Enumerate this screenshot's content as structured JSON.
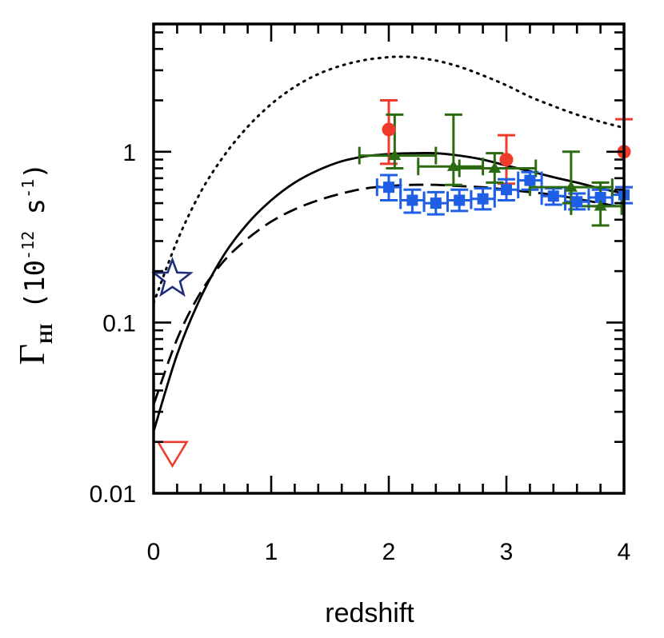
{
  "chart_data": {
    "type": "scatter",
    "title": "",
    "xlabel": "redshift",
    "ylabel": {
      "symbol": "Γ",
      "subscript": "HI",
      "unit_open": "(10",
      "unit_exp1": "-12",
      "unit_mid": " s",
      "unit_exp2": "-1",
      "unit_close": ")"
    },
    "xlim": [
      0,
      4
    ],
    "ylim": [
      0.01,
      5.6
    ],
    "yscale": "log",
    "xticks": [
      {
        "value": 0,
        "label": "0"
      },
      {
        "value": 1,
        "label": "1"
      },
      {
        "value": 2,
        "label": "2"
      },
      {
        "value": 3,
        "label": "3"
      },
      {
        "value": 4,
        "label": "4"
      }
    ],
    "yticks": [
      {
        "value": 0.01,
        "label": "0.01"
      },
      {
        "value": 0.1,
        "label": "0.1"
      },
      {
        "value": 1,
        "label": "1"
      }
    ],
    "curves": [
      {
        "name": "model-solid",
        "style": "solid",
        "x": [
          0,
          0.2,
          0.4,
          0.6,
          0.8,
          1.0,
          1.2,
          1.4,
          1.6,
          1.8,
          2.0,
          2.2,
          2.4,
          2.6,
          2.8,
          3.0,
          3.2,
          3.4,
          3.6,
          3.8,
          4.0
        ],
        "y": [
          0.023,
          0.065,
          0.14,
          0.25,
          0.38,
          0.52,
          0.66,
          0.78,
          0.88,
          0.94,
          0.97,
          0.98,
          0.98,
          0.95,
          0.9,
          0.83,
          0.77,
          0.71,
          0.66,
          0.61,
          0.57
        ]
      },
      {
        "name": "model-dashed",
        "style": "dashed",
        "x": [
          0,
          0.2,
          0.4,
          0.6,
          0.8,
          1.0,
          1.2,
          1.4,
          1.6,
          1.8,
          2.0,
          2.2,
          2.4,
          2.6,
          2.8,
          3.0,
          3.2,
          3.4,
          3.6,
          3.8,
          4.0
        ],
        "y": [
          0.033,
          0.08,
          0.15,
          0.23,
          0.31,
          0.39,
          0.46,
          0.52,
          0.57,
          0.61,
          0.63,
          0.64,
          0.64,
          0.63,
          0.62,
          0.6,
          0.58,
          0.56,
          0.53,
          0.5,
          0.47
        ]
      },
      {
        "name": "model-dotted",
        "style": "dotted",
        "x": [
          0,
          0.2,
          0.4,
          0.6,
          0.8,
          1.0,
          1.2,
          1.4,
          1.6,
          1.8,
          2.0,
          2.1,
          2.2,
          2.4,
          2.6,
          2.8,
          3.0,
          3.2,
          3.4,
          3.6,
          3.8,
          4.0
        ],
        "y": [
          0.13,
          0.3,
          0.58,
          0.95,
          1.4,
          1.9,
          2.4,
          2.85,
          3.2,
          3.45,
          3.58,
          3.6,
          3.58,
          3.42,
          3.15,
          2.8,
          2.45,
          2.1,
          1.85,
          1.65,
          1.5,
          1.38
        ]
      }
    ],
    "series": [
      {
        "name": "red-circles",
        "marker": "circle",
        "color": "#ee3b2b",
        "points": [
          {
            "x": 2.0,
            "y": 1.35,
            "ylo": 0.85,
            "yhi": 2.0
          },
          {
            "x": 3.0,
            "y": 0.9,
            "ylo": 0.65,
            "yhi": 1.25
          },
          {
            "x": 4.0,
            "y": 1.0,
            "ylo": 0.62,
            "yhi": 1.55
          }
        ]
      },
      {
        "name": "blue-squares",
        "marker": "square",
        "color": "#1f5fe6",
        "points": [
          {
            "x": 2.0,
            "y": 0.62,
            "ylo": 0.52,
            "yhi": 0.73,
            "xlo": 1.9,
            "xhi": 2.1
          },
          {
            "x": 2.2,
            "y": 0.52,
            "ylo": 0.44,
            "yhi": 0.6,
            "xlo": 2.1,
            "xhi": 2.3
          },
          {
            "x": 2.4,
            "y": 0.5,
            "ylo": 0.43,
            "yhi": 0.58,
            "xlo": 2.3,
            "xhi": 2.5
          },
          {
            "x": 2.6,
            "y": 0.52,
            "ylo": 0.45,
            "yhi": 0.6,
            "xlo": 2.5,
            "xhi": 2.7
          },
          {
            "x": 2.8,
            "y": 0.53,
            "ylo": 0.46,
            "yhi": 0.61,
            "xlo": 2.7,
            "xhi": 2.9
          },
          {
            "x": 3.0,
            "y": 0.6,
            "ylo": 0.52,
            "yhi": 0.69,
            "xlo": 2.9,
            "xhi": 3.1
          },
          {
            "x": 3.2,
            "y": 0.68,
            "ylo": 0.6,
            "yhi": 0.76,
            "xlo": 3.1,
            "xhi": 3.3
          },
          {
            "x": 3.4,
            "y": 0.55,
            "ylo": 0.49,
            "yhi": 0.61,
            "xlo": 3.3,
            "xhi": 3.5
          },
          {
            "x": 3.6,
            "y": 0.51,
            "ylo": 0.46,
            "yhi": 0.57,
            "xlo": 3.5,
            "xhi": 3.7
          },
          {
            "x": 3.8,
            "y": 0.54,
            "ylo": 0.48,
            "yhi": 0.6,
            "xlo": 3.7,
            "xhi": 3.9
          },
          {
            "x": 4.0,
            "y": 0.56,
            "ylo": 0.5,
            "yhi": 0.62,
            "xlo": 3.9,
            "xhi": 4.0
          }
        ]
      },
      {
        "name": "green-triangles",
        "marker": "triangle",
        "color": "#2d6b12",
        "points": [
          {
            "x": 2.05,
            "y": 0.95,
            "ylo": 0.8,
            "yhi": 1.65,
            "xlo": 1.75,
            "xhi": 2.4
          },
          {
            "x": 2.55,
            "y": 0.82,
            "ylo": 0.64,
            "yhi": 1.65,
            "xlo": 2.25,
            "xhi": 2.8
          },
          {
            "x": 2.9,
            "y": 0.8,
            "ylo": 0.66,
            "yhi": 0.98,
            "xlo": 2.6,
            "xhi": 3.25
          },
          {
            "x": 3.55,
            "y": 0.62,
            "ylo": 0.5,
            "yhi": 1.0,
            "xlo": 3.2,
            "xhi": 3.9
          },
          {
            "x": 3.8,
            "y": 0.48,
            "ylo": 0.37,
            "yhi": 0.66,
            "xlo": 3.55,
            "xhi": 3.98
          }
        ]
      }
    ],
    "special_markers": [
      {
        "name": "low-z-star",
        "marker": "star-open",
        "color": "#1f2e7a",
        "x": 0.16,
        "y": 0.18
      },
      {
        "name": "low-z-upper-limit",
        "marker": "triangle-down-open",
        "color": "#ee3b2b",
        "x": 0.16,
        "y": 0.017
      }
    ]
  }
}
